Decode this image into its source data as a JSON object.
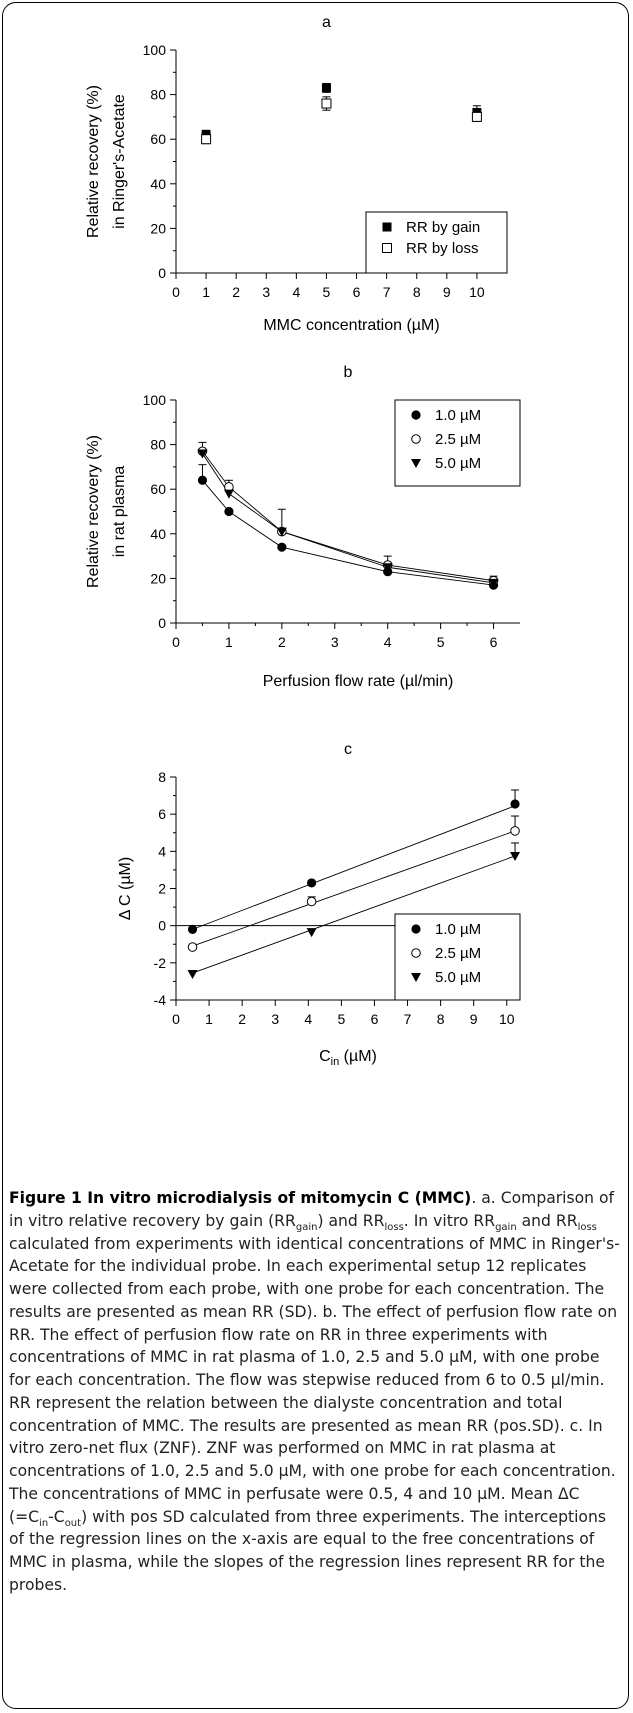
{
  "chart_data": [
    {
      "panel": "a",
      "type": "scatter",
      "xlabel": "MMC concentration (µM)",
      "ylabel_lines": [
        "Relative recovery (%)",
        "in Ringer's-Acetate"
      ],
      "xlim": [
        0,
        11
      ],
      "ylim": [
        0,
        100
      ],
      "xticks": [
        "0",
        "1",
        "2",
        "3",
        "4",
        "5",
        "6",
        "7",
        "8",
        "9",
        "10"
      ],
      "yticks": [
        "0",
        "20",
        "40",
        "60",
        "80",
        "100"
      ],
      "legend_position": "bottom-right",
      "series": [
        {
          "name": "RR by gain",
          "marker": "filled-square",
          "x": [
            1,
            5,
            10
          ],
          "y": [
            62,
            83,
            72
          ],
          "err": [
            2,
            2,
            3
          ]
        },
        {
          "name": "RR by loss",
          "marker": "open-square",
          "x": [
            1,
            5,
            10
          ],
          "y": [
            60,
            76,
            70
          ],
          "err": [
            2,
            3,
            2
          ]
        }
      ]
    },
    {
      "panel": "b",
      "type": "line",
      "xlabel": "Perfusion flow rate (µl/min)",
      "ylabel_lines": [
        "Relative recovery (%)",
        "in rat plasma"
      ],
      "xlim": [
        0,
        6.5
      ],
      "ylim": [
        0,
        100
      ],
      "xticks": [
        "0",
        "1",
        "2",
        "3",
        "4",
        "5",
        "6"
      ],
      "yticks": [
        "0",
        "20",
        "40",
        "60",
        "80",
        "100"
      ],
      "legend_position": "top-right",
      "series": [
        {
          "name": "1.0 µM",
          "marker": "filled-circle",
          "x": [
            0.5,
            1,
            2,
            4,
            6
          ],
          "y": [
            64,
            50,
            34,
            23,
            17
          ],
          "err": [
            7,
            0,
            0,
            0,
            0
          ]
        },
        {
          "name": "2.5 µM",
          "marker": "open-circle",
          "x": [
            0.5,
            1,
            2,
            4,
            6
          ],
          "y": [
            77,
            61,
            41,
            26,
            19
          ],
          "err": [
            4,
            3,
            10,
            4,
            2
          ]
        },
        {
          "name": "5.0 µM",
          "marker": "filled-triangle-down",
          "x": [
            0.5,
            1,
            2,
            4,
            6
          ],
          "y": [
            76,
            58,
            41,
            25,
            18
          ],
          "err": [
            0,
            0,
            0,
            0,
            0
          ]
        }
      ]
    },
    {
      "panel": "c",
      "type": "scatter",
      "xlabel": "Cin (µM)",
      "ylabel": "Δ C (µM)",
      "xlim": [
        0,
        10.4
      ],
      "ylim": [
        -4,
        8
      ],
      "xticks": [
        "0",
        "1",
        "2",
        "3",
        "4",
        "5",
        "6",
        "7",
        "8",
        "9",
        "10"
      ],
      "yticks": [
        "-4",
        "-2",
        "0",
        "2",
        "4",
        "6",
        "8"
      ],
      "legend_position": "bottom-right",
      "series": [
        {
          "name": "1.0 µM",
          "marker": "filled-circle",
          "x": [
            0.5,
            4.1,
            10.25
          ],
          "y": [
            -0.2,
            2.3,
            6.55
          ],
          "err": [
            0,
            0,
            0.75
          ],
          "fit": [
            [
              0.5,
              -0.2
            ],
            [
              10.25,
              6.45
            ]
          ]
        },
        {
          "name": "2.5 µM",
          "marker": "open-circle",
          "x": [
            0.5,
            4.1,
            10.25
          ],
          "y": [
            -1.15,
            1.3,
            5.1
          ],
          "err": [
            0,
            0.25,
            0.8
          ],
          "fit": [
            [
              0.5,
              -1.1
            ],
            [
              10.25,
              5.1
            ]
          ]
        },
        {
          "name": "5.0 µM",
          "marker": "filled-triangle-down",
          "x": [
            0.5,
            4.1,
            10.25
          ],
          "y": [
            -2.6,
            -0.35,
            3.75
          ],
          "err": [
            0,
            0,
            0.7
          ],
          "fit": [
            [
              0.5,
              -2.55
            ],
            [
              10.25,
              3.75
            ]
          ]
        }
      ]
    }
  ],
  "caption": {
    "title": "Figure 1 In vitro microdialysis of mitomycin C (MMC)"
  }
}
